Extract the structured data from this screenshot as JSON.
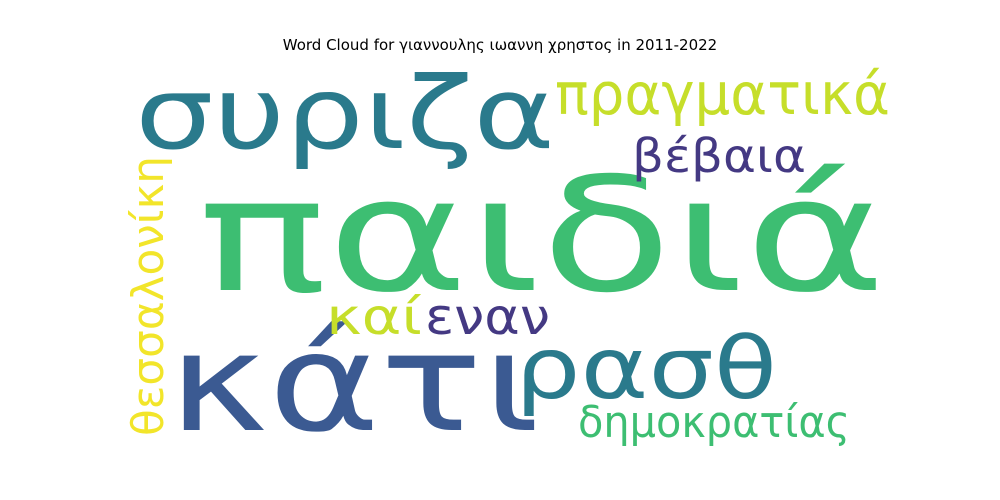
{
  "chart_data": {
    "type": "wordcloud",
    "title": "Word Cloud for γιαννουλης ιωαννη χρηστος in 2011-2022",
    "words": [
      {
        "text": "παιδιά",
        "weight": 1.0,
        "color": "#3dbe72"
      },
      {
        "text": "κάτι",
        "weight": 0.86,
        "color": "#3b5a92"
      },
      {
        "text": "συριζα",
        "weight": 0.62,
        "color": "#2a7a8c"
      },
      {
        "text": "ρασθ",
        "weight": 0.52,
        "color": "#2a7a8c"
      },
      {
        "text": "πραγματικά",
        "weight": 0.38,
        "color": "#c6de2a"
      },
      {
        "text": "εναν",
        "weight": 0.32,
        "color": "#443983"
      },
      {
        "text": "καί",
        "weight": 0.3,
        "color": "#c6de2a"
      },
      {
        "text": "δημοκρατίας",
        "weight": 0.3,
        "color": "#3dbe72"
      },
      {
        "text": "θεσσαλονίκη",
        "weight": 0.3,
        "color": "#f2e52a"
      },
      {
        "text": "βέβαια",
        "weight": 0.28,
        "color": "#443983"
      }
    ]
  }
}
